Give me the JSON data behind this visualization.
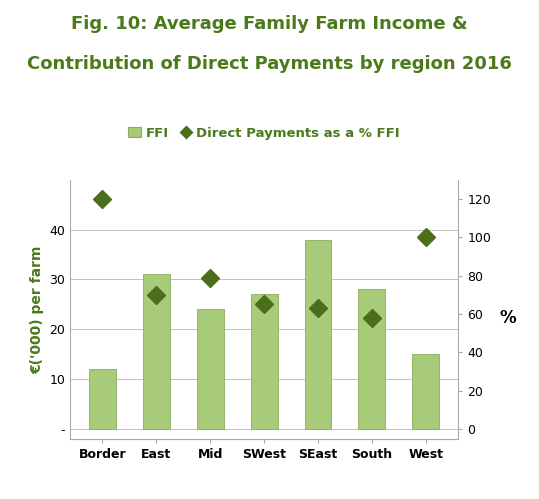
{
  "title_line1": "Fig. 10: Average Family Farm Income &",
  "title_line2": "Contribution of Direct Payments by region 2016",
  "categories": [
    "Border",
    "East",
    "Mid",
    "SWest",
    "SEast",
    "South",
    "West"
  ],
  "ffi_values": [
    12,
    31,
    24,
    27,
    38,
    28,
    15
  ],
  "dp_pct_values": [
    120,
    70,
    79,
    65,
    63,
    58,
    100
  ],
  "bar_color": "#a8cb7a",
  "bar_edge_color": "#8aad5a",
  "diamond_color": "#4a6e1a",
  "ylabel_left": "€('000) per farm",
  "ylabel_right": "%",
  "ylim_left": [
    -2,
    50
  ],
  "ylim_right": [
    0,
    130
  ],
  "yticks_left": [
    0,
    10,
    20,
    30,
    40
  ],
  "ytick_labels_left": [
    "-",
    "10",
    "20",
    "30",
    "40"
  ],
  "ytick_label_zero": "-",
  "yticks_right": [
    0,
    20,
    40,
    60,
    80,
    100,
    120
  ],
  "legend_ffi": "FFI",
  "legend_dp": "Direct Payments as a % FFI",
  "title_color": "#4a7a1a",
  "ylabel_color": "#4a7a1a",
  "legend_color": "#4a7a1a",
  "right_ylabel_color": "#000000",
  "background_color": "#ffffff",
  "grid_color": "#aaaaaa",
  "title_fontsize": 13,
  "tick_fontsize": 9,
  "bar_width": 0.5
}
